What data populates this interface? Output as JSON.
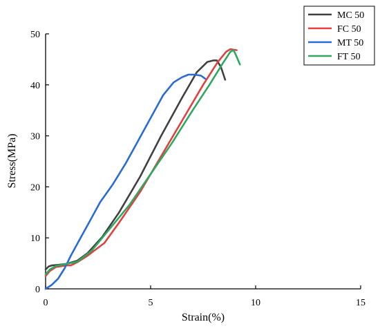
{
  "chart_data": {
    "type": "line",
    "title": "",
    "xlabel": "Strain(%)",
    "ylabel": "Stress(MPa)",
    "xlim": [
      0,
      15
    ],
    "ylim": [
      0,
      50
    ],
    "xticks": [
      0,
      5,
      10,
      15
    ],
    "yticks": [
      0,
      10,
      20,
      30,
      40,
      50
    ],
    "xtick_labels": [
      "0",
      "5",
      "10",
      "15"
    ],
    "ytick_labels": [
      "0",
      "10",
      "20",
      "30",
      "40",
      "50"
    ],
    "grid": false,
    "legend_position": "top-right",
    "series": [
      {
        "name": "MC 50",
        "color": "#404040",
        "x": [
          0,
          0.15,
          0.3,
          0.6,
          1.0,
          1.5,
          2.0,
          2.7,
          3.5,
          4.5,
          5.5,
          6.5,
          7.2,
          7.7,
          8.0,
          8.15,
          8.35,
          8.55
        ],
        "y": [
          3.8,
          4.4,
          4.6,
          4.7,
          4.9,
          5.5,
          7.0,
          10.2,
          15.0,
          22.0,
          30.0,
          37.5,
          42.5,
          44.5,
          44.8,
          44.8,
          43.5,
          41.0
        ]
      },
      {
        "name": "FC 50",
        "color": "#e04040",
        "x": [
          0,
          0.2,
          0.5,
          1.0,
          1.2,
          1.5,
          2.0,
          2.8,
          3.5,
          4.5,
          5.5,
          6.5,
          7.5,
          8.2,
          8.6,
          8.8,
          9.1
        ],
        "y": [
          2.5,
          3.5,
          4.3,
          4.6,
          4.6,
          5.2,
          6.5,
          9.0,
          13.0,
          19.0,
          26.0,
          33.0,
          40.0,
          44.5,
          46.5,
          47.0,
          46.8
        ]
      },
      {
        "name": "MT 50",
        "color": "#2a6ad8",
        "x": [
          0,
          0.3,
          0.6,
          0.9,
          1.2,
          1.6,
          2.0,
          2.6,
          3.2,
          3.8,
          4.4,
          5.0,
          5.6,
          6.1,
          6.5,
          6.8,
          7.1,
          7.4,
          7.6
        ],
        "y": [
          0,
          0.8,
          2.0,
          4.0,
          6.5,
          9.5,
          12.5,
          17.0,
          20.5,
          24.5,
          29.0,
          33.5,
          38.0,
          40.5,
          41.5,
          42.0,
          42.0,
          41.8,
          41.2
        ]
      },
      {
        "name": "FT 50",
        "color": "#2ea860",
        "x": [
          0,
          0.2,
          0.5,
          1.0,
          1.5,
          2.2,
          3.0,
          4.0,
          5.0,
          6.0,
          7.0,
          7.8,
          8.4,
          8.8,
          8.95,
          9.1,
          9.25
        ],
        "y": [
          2.8,
          3.8,
          4.5,
          4.9,
          5.3,
          7.5,
          11.5,
          16.5,
          22.5,
          28.5,
          35.0,
          40.0,
          44.0,
          46.5,
          46.8,
          45.5,
          44.0
        ]
      }
    ]
  }
}
